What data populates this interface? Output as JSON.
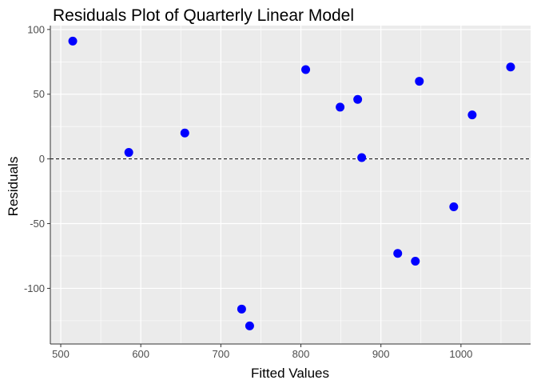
{
  "chart_data": {
    "type": "scatter",
    "title": "Residuals Plot of Quarterly Linear Model",
    "xlabel": "Fitted Values",
    "ylabel": "Residuals",
    "xlim": [
      487,
      1087
    ],
    "ylim": [
      -143,
      103
    ],
    "x_ticks": [
      500,
      600,
      700,
      800,
      900,
      1000
    ],
    "x_tick_labels": [
      "500",
      "600",
      "700",
      "800",
      "900",
      "1000"
    ],
    "y_ticks": [
      -100,
      -50,
      0,
      50,
      100
    ],
    "y_tick_labels": [
      "-100",
      "-50",
      "0",
      "50",
      "100"
    ],
    "reference_line": {
      "y": 0,
      "style": "dashed"
    },
    "point_color": "#0000ff",
    "panel_background": "#ebebeb",
    "grid": true,
    "points": [
      {
        "x": 515,
        "y": 91
      },
      {
        "x": 585,
        "y": 5
      },
      {
        "x": 655,
        "y": 20
      },
      {
        "x": 726,
        "y": -116
      },
      {
        "x": 736,
        "y": -129
      },
      {
        "x": 806,
        "y": 69
      },
      {
        "x": 849,
        "y": 40
      },
      {
        "x": 871,
        "y": 46
      },
      {
        "x": 876,
        "y": 1
      },
      {
        "x": 921,
        "y": -73
      },
      {
        "x": 943,
        "y": -79
      },
      {
        "x": 948,
        "y": 60
      },
      {
        "x": 991,
        "y": -37
      },
      {
        "x": 1014,
        "y": 34
      },
      {
        "x": 1062,
        "y": 71
      }
    ]
  }
}
